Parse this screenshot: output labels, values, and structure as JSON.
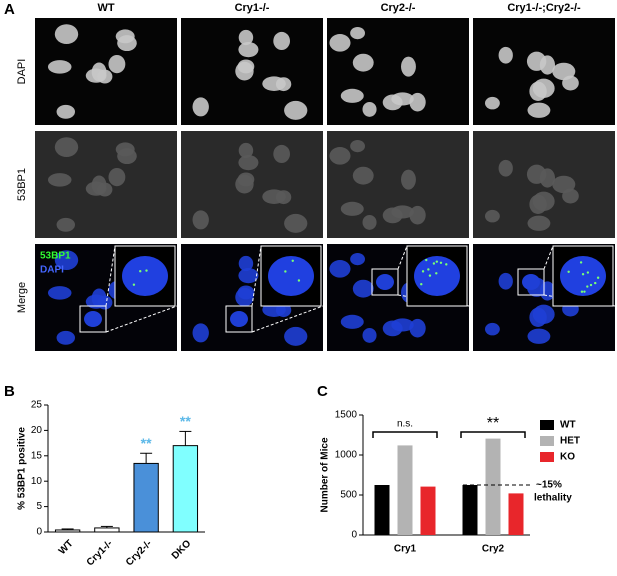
{
  "panel_labels": [
    "A",
    "B",
    "C"
  ],
  "figure_a": {
    "columns": [
      "WT",
      "Cry1-/-",
      "Cry2-/-",
      "Cry1-/-;Cry2-/-"
    ],
    "rows": [
      "DAPI",
      "53BP1",
      "Merge"
    ],
    "merge_labels": [
      "53BP1",
      "DAPI"
    ]
  },
  "chart_data": [
    {
      "type": "bar",
      "y_label": "% 53BP1 positive",
      "categories": [
        "WT",
        "Cry1-/-",
        "Cry2-/-",
        "DKO"
      ],
      "values": [
        0.4,
        0.8,
        13.5,
        17
      ],
      "errors": [
        0.2,
        0.3,
        2,
        2.8
      ],
      "colors": [
        "#ffffff",
        "#ffffff",
        "#4a90d9",
        "#80ffff"
      ],
      "significance": [
        null,
        null,
        "**",
        "**"
      ],
      "significance_color": "#5bb8e8",
      "ylim": [
        0,
        25
      ],
      "yticks": [
        0,
        5,
        10,
        15,
        20,
        25
      ]
    },
    {
      "type": "grouped_bar",
      "y_label": "Number of Mice",
      "categories": [
        "Cry1",
        "Cry2"
      ],
      "series": [
        {
          "name": "WT",
          "color": "#000000",
          "values": [
            625,
            625
          ]
        },
        {
          "name": "HET",
          "color": "#b3b3b3",
          "values": [
            1120,
            1205
          ]
        },
        {
          "name": "KO",
          "color": "#e8262b",
          "values": [
            605,
            520
          ]
        }
      ],
      "group_labels": [
        "n.s.",
        "**"
      ],
      "annotation": [
        "~15%",
        "lethality"
      ],
      "ylim": [
        0,
        1500
      ],
      "yticks": [
        0,
        500,
        1000,
        1500
      ]
    }
  ]
}
